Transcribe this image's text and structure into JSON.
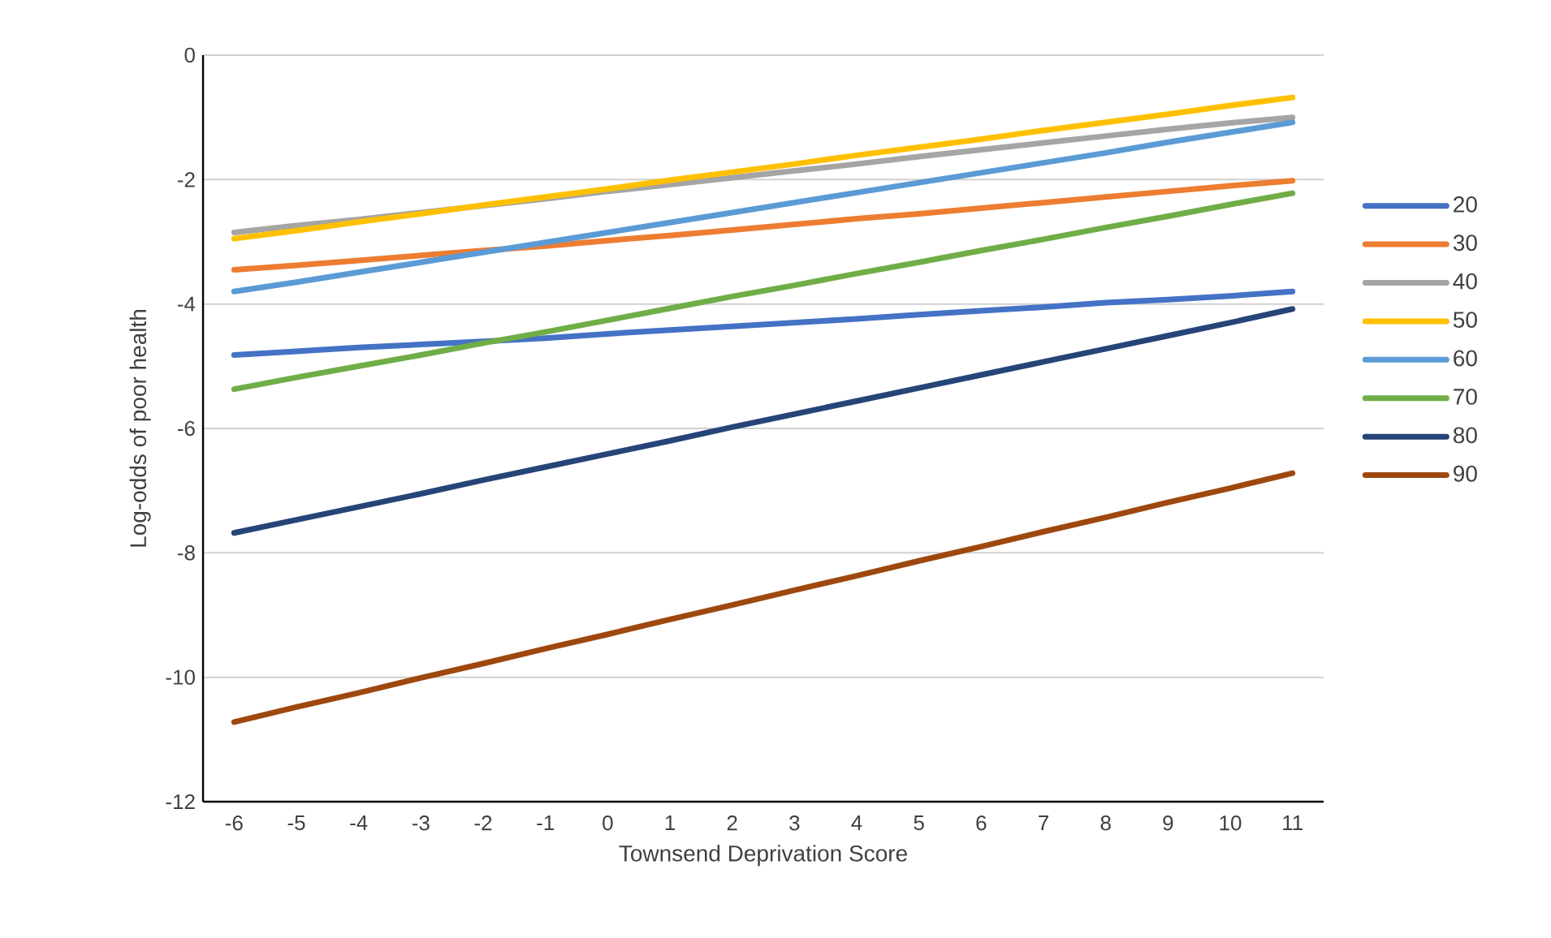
{
  "chart_data": {
    "type": "line",
    "xlabel": "Townsend Deprivation Score",
    "ylabel": "Log-odds of poor health",
    "categories": [
      "-6",
      "-5",
      "-4",
      "-3",
      "-2",
      "-1",
      "0",
      "1",
      "2",
      "3",
      "4",
      "5",
      "6",
      "7",
      "8",
      "9",
      "10",
      "11"
    ],
    "ylim": [
      -12,
      0
    ],
    "yticks": [
      -12,
      -10,
      -8,
      -6,
      -4,
      -2,
      0
    ],
    "grid": "y",
    "legend": "right",
    "series": [
      {
        "name": "20",
        "color": "#4472c4",
        "values": [
          -4.82,
          -4.76,
          -4.7,
          -4.65,
          -4.6,
          -4.55,
          -4.48,
          -4.42,
          -4.36,
          -4.3,
          -4.24,
          -4.17,
          -4.11,
          -4.05,
          -3.98,
          -3.93,
          -3.87,
          -3.8
        ]
      },
      {
        "name": "30",
        "color": "#ed7d31",
        "values": [
          -3.45,
          -3.38,
          -3.3,
          -3.22,
          -3.14,
          -3.07,
          -2.98,
          -2.9,
          -2.81,
          -2.72,
          -2.63,
          -2.55,
          -2.46,
          -2.37,
          -2.28,
          -2.19,
          -2.1,
          -2.02
        ]
      },
      {
        "name": "40",
        "color": "#a5a5a5",
        "values": [
          -2.85,
          -2.74,
          -2.64,
          -2.53,
          -2.42,
          -2.31,
          -2.19,
          -2.08,
          -1.97,
          -1.86,
          -1.75,
          -1.63,
          -1.52,
          -1.41,
          -1.3,
          -1.19,
          -1.09,
          -1.0
        ]
      },
      {
        "name": "50",
        "color": "#ffc000",
        "values": [
          -2.95,
          -2.82,
          -2.68,
          -2.55,
          -2.41,
          -2.28,
          -2.15,
          -2.01,
          -1.88,
          -1.75,
          -1.61,
          -1.48,
          -1.35,
          -1.21,
          -1.08,
          -0.95,
          -0.81,
          -0.68
        ]
      },
      {
        "name": "60",
        "color": "#5b9bd5",
        "values": [
          -3.8,
          -3.65,
          -3.49,
          -3.33,
          -3.17,
          -3.01,
          -2.85,
          -2.69,
          -2.53,
          -2.37,
          -2.21,
          -2.05,
          -1.89,
          -1.73,
          -1.57,
          -1.4,
          -1.24,
          -1.08
        ]
      },
      {
        "name": "70",
        "color": "#70ad47",
        "values": [
          -5.37,
          -5.18,
          -5.0,
          -4.82,
          -4.63,
          -4.45,
          -4.26,
          -4.07,
          -3.88,
          -3.7,
          -3.51,
          -3.33,
          -3.14,
          -2.96,
          -2.77,
          -2.59,
          -2.4,
          -2.22
        ]
      },
      {
        "name": "80",
        "color": "#264478",
        "values": [
          -7.68,
          -7.47,
          -7.26,
          -7.05,
          -6.83,
          -6.62,
          -6.41,
          -6.2,
          -5.98,
          -5.77,
          -5.56,
          -5.35,
          -5.14,
          -4.93,
          -4.72,
          -4.51,
          -4.3,
          -4.08
        ]
      },
      {
        "name": "90",
        "color": "#9e480e",
        "values": [
          -10.72,
          -10.48,
          -10.25,
          -10.01,
          -9.78,
          -9.54,
          -9.31,
          -9.07,
          -8.84,
          -8.6,
          -8.37,
          -8.13,
          -7.9,
          -7.66,
          -7.43,
          -7.19,
          -6.96,
          -6.72
        ]
      }
    ]
  }
}
